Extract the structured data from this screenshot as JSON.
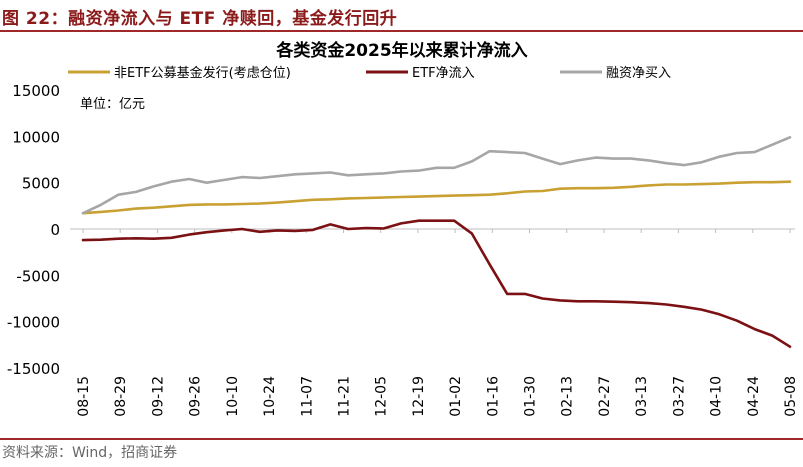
{
  "header": {
    "figure_title": "图 22：融资净流入与 ETF 净赎回，基金发行回升"
  },
  "footer": {
    "source": "资料来源：Wind，招商证券"
  },
  "colors": {
    "brand": "#8b1a1a",
    "rule": "#a02828",
    "axis": "#bfbfbf"
  },
  "chart_data": {
    "type": "line",
    "title": "各类资金2025年以来累计净流入",
    "unit_note": "单位：亿元",
    "xlabel": "",
    "ylabel": "",
    "ylim": [
      -15000,
      15000
    ],
    "yticks": [
      15000,
      10000,
      5000,
      0,
      -5000,
      -10000,
      -15000
    ],
    "grid": false,
    "legend_position": "top",
    "x_tick_labels": [
      "08-15",
      "08-29",
      "09-12",
      "09-26",
      "10-10",
      "10-24",
      "11-07",
      "11-21",
      "12-05",
      "12-19",
      "01-02",
      "01-16",
      "01-30",
      "02-13",
      "02-27",
      "03-13",
      "03-27",
      "04-10",
      "04-24",
      "05-08"
    ],
    "series": [
      {
        "name": "非ETF公募基金发行(考虑仓位)",
        "color": "#c9a032",
        "values": [
          1700,
          1850,
          2000,
          2200,
          2300,
          2450,
          2600,
          2650,
          2650,
          2700,
          2750,
          2850,
          3000,
          3150,
          3200,
          3300,
          3350,
          3400,
          3450,
          3500,
          3550,
          3600,
          3650,
          3700,
          3850,
          4050,
          4100,
          4350,
          4400,
          4400,
          4450,
          4550,
          4700,
          4800,
          4800,
          4850,
          4900,
          5000,
          5050,
          5050,
          5100
        ]
      },
      {
        "name": "ETF净流入",
        "color": "#7b1113",
        "values": [
          -1200,
          -1150,
          -1050,
          -1000,
          -1050,
          -950,
          -600,
          -350,
          -150,
          0,
          -300,
          -150,
          -200,
          -100,
          500,
          0,
          100,
          50,
          600,
          900,
          900,
          900,
          -500,
          -3800,
          -7000,
          -7000,
          -7500,
          -7700,
          -7800,
          -7800,
          -7850,
          -7900,
          -8000,
          -8150,
          -8400,
          -8700,
          -9200,
          -9900,
          -10800,
          -11500,
          -12700
        ]
      },
      {
        "name": "融资净买入",
        "color": "#a6a6a6",
        "values": [
          1700,
          2600,
          3700,
          4000,
          4600,
          5100,
          5400,
          5000,
          5300,
          5600,
          5500,
          5700,
          5900,
          6000,
          6100,
          5800,
          5900,
          6000,
          6200,
          6300,
          6600,
          6600,
          7300,
          8400,
          8300,
          8200,
          7600,
          7000,
          7400,
          7700,
          7600,
          7600,
          7400,
          7100,
          6900,
          7200,
          7800,
          8200,
          8300,
          9100,
          9900
        ]
      }
    ]
  }
}
